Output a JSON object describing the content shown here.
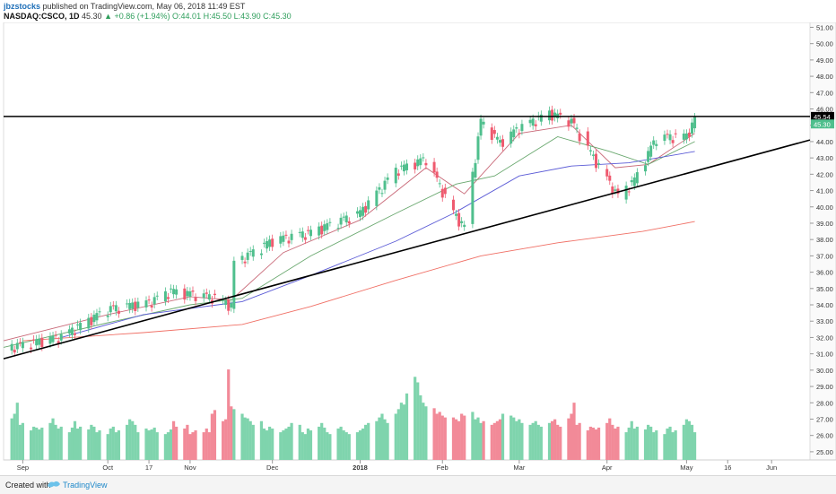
{
  "header": {
    "author": "jbzstocks",
    "published": "published on TradingView.com, May 06, 2018 11:49 EST",
    "symbol": "NASDAQ:CSCO, 1D",
    "last": "45.30",
    "change": "▲ +0.86 (+1.94%)",
    "ohlc": "O:44.01  H:45.50  L:43.90  C:45.30"
  },
  "footer": {
    "created_with": "Created with",
    "brand": "TradingView"
  },
  "colors": {
    "up": "#4fbf8d",
    "down": "#ef5a6f",
    "vol_up": "#7fd4ad",
    "vol_down": "#f28a98",
    "ma_fast": "#c96a79",
    "ma_mid": "#6aa86f",
    "ma_slow": "#5b5bd6",
    "ma_long": "#f07066",
    "resistance": "#000000",
    "trendline": "#000000"
  },
  "chart_data": {
    "type": "candlestick",
    "title": "NASDAQ:CSCO, 1D",
    "ylim": [
      24.5,
      51.3
    ],
    "y_ticks": [
      "25.00",
      "26.00",
      "27.00",
      "28.00",
      "29.00",
      "30.00",
      "31.00",
      "32.00",
      "33.00",
      "34.00",
      "35.00",
      "36.00",
      "37.00",
      "38.00",
      "39.00",
      "40.00",
      "41.00",
      "42.00",
      "43.00",
      "44.00",
      "45.00",
      "46.00",
      "47.00",
      "48.00",
      "49.00",
      "50.00",
      "51.00"
    ],
    "x_ticks": [
      "Sep",
      "Oct",
      "17",
      "Nov",
      "Dec",
      "2018",
      "Feb",
      "Mar",
      "Apr",
      "May",
      "16",
      "Jun"
    ],
    "x_tick_dates": [
      "2017-09-01",
      "2017-10-02",
      "2017-10-17",
      "2017-11-01",
      "2017-12-01",
      "2018-01-02",
      "2018-02-01",
      "2018-03-01",
      "2018-04-02",
      "2018-05-01",
      "2018-05-16",
      "2018-06-01"
    ],
    "date_range": [
      "2017-08-25",
      "2018-06-15"
    ],
    "last_price": 45.3,
    "resistance_level": 45.54,
    "price_labels": {
      "resistance": "45.54",
      "last": "45.30"
    },
    "trendline": {
      "start": [
        "2017-08-25",
        30.7
      ],
      "end": [
        "2018-06-15",
        44.1
      ]
    },
    "key_points": [
      {
        "date": "2017-08-28",
        "close": 31.4
      },
      {
        "date": "2017-09-15",
        "close": 32.0
      },
      {
        "date": "2017-10-02",
        "close": 33.7
      },
      {
        "date": "2017-10-17",
        "close": 34.1
      },
      {
        "date": "2017-10-25",
        "close": 34.8
      },
      {
        "date": "2017-11-10",
        "close": 34.4
      },
      {
        "date": "2017-11-16",
        "close": 33.9
      },
      {
        "date": "2017-11-17",
        "close": 36.5
      },
      {
        "date": "2017-12-01",
        "close": 37.9
      },
      {
        "date": "2017-12-15",
        "close": 38.4
      },
      {
        "date": "2018-01-02",
        "close": 39.6
      },
      {
        "date": "2018-01-15",
        "close": 42.2
      },
      {
        "date": "2018-01-26",
        "close": 42.9
      },
      {
        "date": "2018-02-05",
        "close": 39.6
      },
      {
        "date": "2018-02-09",
        "close": 38.7
      },
      {
        "date": "2018-02-15",
        "close": 45.2
      },
      {
        "date": "2018-02-22",
        "close": 43.9
      },
      {
        "date": "2018-03-01",
        "close": 44.8
      },
      {
        "date": "2018-03-12",
        "close": 45.7
      },
      {
        "date": "2018-03-20",
        "close": 45.2
      },
      {
        "date": "2018-03-28",
        "close": 43.0
      },
      {
        "date": "2018-04-06",
        "close": 40.6
      },
      {
        "date": "2018-04-12",
        "close": 41.6
      },
      {
        "date": "2018-04-20",
        "close": 44.2
      },
      {
        "date": "2018-05-01",
        "close": 44.3
      },
      {
        "date": "2018-05-04",
        "close": 45.3
      }
    ],
    "moving_averages": [
      {
        "name": "ma_fast",
        "points": [
          [
            "2017-08-25",
            31.8
          ],
          [
            "2017-10-02",
            33.4
          ],
          [
            "2017-11-01",
            34.5
          ],
          [
            "2017-11-16",
            34.3
          ],
          [
            "2017-12-05",
            37.2
          ],
          [
            "2018-01-02",
            39.2
          ],
          [
            "2018-01-26",
            42.4
          ],
          [
            "2018-02-09",
            40.8
          ],
          [
            "2018-03-01",
            44.5
          ],
          [
            "2018-03-20",
            45.0
          ],
          [
            "2018-04-05",
            42.4
          ],
          [
            "2018-04-17",
            42.6
          ],
          [
            "2018-05-04",
            44.5
          ]
        ]
      },
      {
        "name": "ma_mid",
        "points": [
          [
            "2017-08-25",
            31.4
          ],
          [
            "2017-10-02",
            32.9
          ],
          [
            "2017-11-01",
            34.0
          ],
          [
            "2017-11-20",
            34.4
          ],
          [
            "2017-12-15",
            37.0
          ],
          [
            "2018-01-15",
            39.6
          ],
          [
            "2018-02-06",
            41.4
          ],
          [
            "2018-02-20",
            41.9
          ],
          [
            "2018-03-15",
            44.3
          ],
          [
            "2018-04-03",
            43.4
          ],
          [
            "2018-04-17",
            42.6
          ],
          [
            "2018-05-04",
            44.0
          ]
        ]
      },
      {
        "name": "ma_slow",
        "points": [
          [
            "2017-09-15",
            32.0
          ],
          [
            "2017-10-15",
            33.4
          ],
          [
            "2017-11-20",
            34.2
          ],
          [
            "2017-12-15",
            35.8
          ],
          [
            "2018-01-15",
            37.9
          ],
          [
            "2018-02-05",
            39.6
          ],
          [
            "2018-03-01",
            41.9
          ],
          [
            "2018-03-20",
            42.5
          ],
          [
            "2018-04-10",
            42.7
          ],
          [
            "2018-05-04",
            43.4
          ]
        ]
      },
      {
        "name": "ma_long",
        "points": [
          [
            "2017-09-01",
            31.8
          ],
          [
            "2017-10-15",
            32.3
          ],
          [
            "2017-11-20",
            32.8
          ],
          [
            "2017-12-15",
            33.9
          ],
          [
            "2018-01-15",
            35.5
          ],
          [
            "2018-02-15",
            37.0
          ],
          [
            "2018-03-15",
            37.8
          ],
          [
            "2018-04-15",
            38.5
          ],
          [
            "2018-05-04",
            39.1
          ]
        ]
      }
    ],
    "volume_relative": [
      0.45,
      0.5,
      0.62,
      0.38,
      0.4,
      0.32,
      0.36,
      0.35,
      0.33,
      0.35,
      0.4,
      0.45,
      0.38,
      0.34,
      0.36,
      0.3,
      0.35,
      0.42,
      0.34,
      0.36,
      0.33,
      0.38,
      0.36,
      0.3,
      0.32,
      0.28,
      0.34,
      0.36,
      0.3,
      0.32,
      0.38,
      0.44,
      0.42,
      0.38,
      0.3,
      0.34,
      0.32,
      0.33,
      0.35,
      0.3,
      0.28,
      0.3,
      0.33,
      0.42,
      0.36,
      0.34,
      0.38,
      0.28,
      0.3,
      0.32,
      0.3,
      0.34,
      0.3,
      0.5,
      0.54,
      0.42,
      0.44,
      0.98,
      0.58,
      0.55,
      0.5,
      0.46,
      0.45,
      0.42,
      0.38,
      0.42,
      0.34,
      0.32,
      0.36,
      0.34,
      0.3,
      0.32,
      0.34,
      0.36,
      0.4,
      0.38,
      0.3,
      0.28,
      0.34,
      0.32,
      0.36,
      0.4,
      0.35,
      0.3,
      0.28,
      0.34,
      0.36,
      0.32,
      0.3,
      0.28,
      0.3,
      0.32,
      0.34,
      0.38,
      0.4,
      0.42,
      0.46,
      0.5,
      0.44,
      0.4,
      0.5,
      0.55,
      0.62,
      0.6,
      0.72,
      0.9,
      0.84,
      0.7,
      0.62,
      0.58,
      0.56,
      0.5,
      0.52,
      0.48,
      0.46,
      0.46,
      0.44,
      0.42,
      0.5,
      0.48,
      0.52,
      0.44,
      0.46,
      0.4,
      0.42,
      0.38,
      0.4,
      0.42,
      0.44,
      0.5,
      0.48,
      0.46,
      0.42,
      0.44,
      0.4,
      0.38,
      0.4,
      0.42,
      0.38,
      0.36,
      0.4,
      0.42,
      0.44,
      0.38,
      0.36
    ]
  }
}
